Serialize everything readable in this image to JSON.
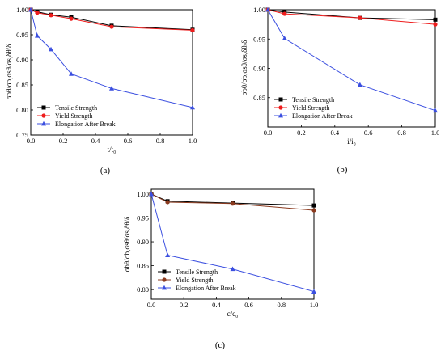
{
  "panel_labels": [
    "(a)",
    "(b)",
    "(c)"
  ],
  "chart_data": [
    {
      "type": "line",
      "panel": "(a)",
      "xlabel": "t/t₀",
      "ylabel": "σbθ/σb,σsθ/σs,δθ/δ",
      "xlim": [
        0,
        1.0
      ],
      "ylim": [
        0.75,
        1.0
      ],
      "xticks": [
        0,
        0.2,
        0.4,
        0.6,
        0.8,
        1.0
      ],
      "yticks": [
        0.75,
        0.8,
        0.85,
        0.9,
        0.95,
        1.0
      ],
      "xtick_labels": [
        "0.0",
        "0.2",
        "0.4",
        "0.6",
        "0.8",
        "1.0"
      ],
      "ytick_labels": [
        "0.75",
        "0.80",
        "0.85",
        "0.90",
        "0.95",
        "1.00"
      ],
      "legend_position": "bottom-left",
      "series": [
        {
          "name": "Tensile Strength",
          "color": "#000000",
          "marker": "square",
          "x": [
            0,
            0.04,
            0.125,
            0.25,
            0.5,
            1.0
          ],
          "values": [
            1.0,
            0.996,
            0.99,
            0.985,
            0.968,
            0.96
          ]
        },
        {
          "name": "Yield Strength",
          "color": "#ee1c1c",
          "marker": "circle",
          "x": [
            0,
            0.04,
            0.125,
            0.25,
            0.5,
            1.0
          ],
          "values": [
            1.0,
            0.994,
            0.989,
            0.982,
            0.966,
            0.959
          ]
        },
        {
          "name": "Elongation After Break",
          "color": "#3b4fe0",
          "marker": "triangle",
          "x": [
            0,
            0.04,
            0.125,
            0.25,
            0.5,
            1.0
          ],
          "values": [
            1.0,
            0.948,
            0.921,
            0.872,
            0.843,
            0.805
          ]
        }
      ]
    },
    {
      "type": "line",
      "panel": "(b)",
      "xlabel": "i/i₀",
      "ylabel": "σbθ/σb,σsθ/σs,δθ/δ",
      "xlim": [
        0,
        1.0
      ],
      "ylim": [
        0.8,
        1.0
      ],
      "xticks": [
        0,
        0.2,
        0.4,
        0.6,
        0.8,
        1.0
      ],
      "yticks": [
        0.85,
        0.9,
        0.95,
        1.0
      ],
      "xtick_labels": [
        "0.0",
        "0.2",
        "0.4",
        "0.6",
        "0.8",
        "1.0"
      ],
      "ytick_labels": [
        "0.85",
        "0.90",
        "0.95",
        "1.00"
      ],
      "legend_position": "bottom-left",
      "series": [
        {
          "name": "Tensile Strength",
          "color": "#000000",
          "marker": "square",
          "x": [
            0,
            0.1,
            0.55,
            1.0
          ],
          "values": [
            1.0,
            0.996,
            0.986,
            0.983
          ]
        },
        {
          "name": "Yield Strength",
          "color": "#ee1c1c",
          "marker": "circle",
          "x": [
            0,
            0.1,
            0.55,
            1.0
          ],
          "values": [
            1.0,
            0.993,
            0.986,
            0.975
          ]
        },
        {
          "name": "Elongation After Break",
          "color": "#3b4fe0",
          "marker": "triangle",
          "x": [
            0,
            0.1,
            0.55,
            1.0
          ],
          "values": [
            1.0,
            0.951,
            0.872,
            0.828
          ]
        }
      ]
    },
    {
      "type": "line",
      "panel": "(c)",
      "xlabel": "c/c₀",
      "ylabel": "σbθ/σb,σsθ/σs,δθ/δ",
      "xlim": [
        0,
        1.0
      ],
      "ylim": [
        0.78,
        1.01
      ],
      "xticks": [
        0,
        0.2,
        0.4,
        0.6,
        0.8,
        1.0
      ],
      "yticks": [
        0.8,
        0.85,
        0.9,
        0.95,
        1.0
      ],
      "xtick_labels": [
        "0.0",
        "0.2",
        "0.4",
        "0.6",
        "0.8",
        "1.0"
      ],
      "ytick_labels": [
        "0.80",
        "0.85",
        "0.90",
        "0.95",
        "1.00"
      ],
      "legend_position": "bottom-left",
      "series": [
        {
          "name": "Tensile Strength",
          "color": "#000000",
          "marker": "square",
          "x": [
            0,
            0.1,
            0.5,
            1.0
          ],
          "values": [
            1.0,
            0.985,
            0.981,
            0.976
          ]
        },
        {
          "name": "Yield Strength",
          "color": "#8b3a1e",
          "marker": "circle",
          "x": [
            0,
            0.1,
            0.5,
            1.0
          ],
          "values": [
            1.0,
            0.983,
            0.98,
            0.966
          ]
        },
        {
          "name": "Elongation After Break",
          "color": "#3b4fe0",
          "marker": "triangle",
          "x": [
            0,
            0.1,
            0.5,
            1.0
          ],
          "values": [
            1.0,
            0.872,
            0.843,
            0.796
          ]
        }
      ]
    }
  ]
}
